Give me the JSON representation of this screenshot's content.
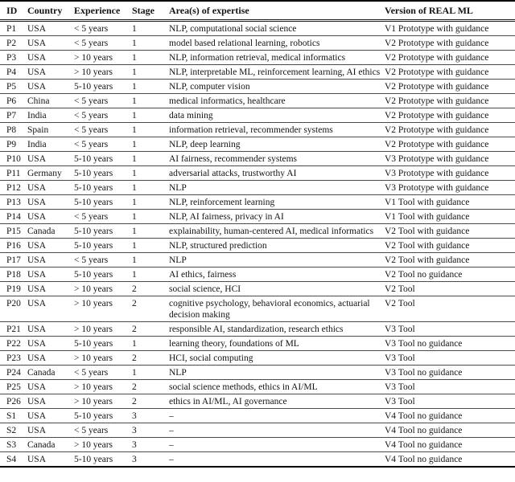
{
  "table": {
    "columns": [
      "ID",
      "Country",
      "Experience",
      "Stage",
      "Area(s) of expertise",
      "Version of REAL ML"
    ],
    "rows": [
      [
        "P1",
        "USA",
        "< 5 years",
        "1",
        "NLP, computational social science",
        "V1 Prototype with guidance"
      ],
      [
        "P2",
        "USA",
        "< 5 years",
        "1",
        "model based relational learning, robotics",
        "V2 Prototype with guidance"
      ],
      [
        "P3",
        "USA",
        "> 10 years",
        "1",
        "NLP, information retrieval, medical informatics",
        "V2 Prototype with guidance"
      ],
      [
        "P4",
        "USA",
        "> 10 years",
        "1",
        "NLP, interpretable ML, reinforcement learning, AI ethics",
        "V2 Prototype with guidance"
      ],
      [
        "P5",
        "USA",
        "5-10 years",
        "1",
        "NLP, computer vision",
        "V2 Prototype with guidance"
      ],
      [
        "P6",
        "China",
        "< 5 years",
        "1",
        "medical informatics, healthcare",
        "V2 Prototype with guidance"
      ],
      [
        "P7",
        "India",
        "< 5 years",
        "1",
        "data mining",
        "V2 Prototype with guidance"
      ],
      [
        "P8",
        "Spain",
        "< 5 years",
        "1",
        "information retrieval, recommender systems",
        "V2 Prototype with guidance"
      ],
      [
        "P9",
        "India",
        "< 5 years",
        "1",
        "NLP, deep learning",
        "V2 Prototype with guidance"
      ],
      [
        "P10",
        "USA",
        "5-10 years",
        "1",
        "AI fairness, recommender systems",
        "V3 Prototype with guidance"
      ],
      [
        "P11",
        "Germany",
        "5-10 years",
        "1",
        "adversarial attacks, trustworthy AI",
        "V3 Prototype with guidance"
      ],
      [
        "P12",
        "USA",
        "5-10 years",
        "1",
        "NLP",
        "V3 Prototype with guidance"
      ],
      [
        "P13",
        "USA",
        "5-10 years",
        "1",
        "NLP, reinforcement learning",
        "V1 Tool with guidance"
      ],
      [
        "P14",
        "USA",
        "< 5 years",
        "1",
        "NLP, AI fairness, privacy in AI",
        "V1 Tool with guidance"
      ],
      [
        "P15",
        "Canada",
        "5-10 years",
        "1",
        "explainability, human-centered AI, medical informatics",
        "V2 Tool with guidance"
      ],
      [
        "P16",
        "USA",
        "5-10 years",
        "1",
        "NLP, structured prediction",
        "V2 Tool with guidance"
      ],
      [
        "P17",
        "USA",
        "< 5 years",
        "1",
        "NLP",
        "V2 Tool with guidance"
      ],
      [
        "P18",
        "USA",
        "5-10 years",
        "1",
        "AI ethics, fairness",
        "V2 Tool no guidance"
      ],
      [
        "P19",
        "USA",
        "> 10 years",
        "2",
        "social science, HCI",
        "V2 Tool"
      ],
      [
        "P20",
        "USA",
        "> 10 years",
        "2",
        "cognitive psychology, behavioral economics, actuarial decision making",
        "V2 Tool"
      ],
      [
        "P21",
        "USA",
        "> 10 years",
        "2",
        "responsible AI, standardization, research ethics",
        "V3 Tool"
      ],
      [
        "P22",
        "USA",
        "5-10 years",
        "1",
        "learning theory, foundations of ML",
        "V3 Tool no guidance"
      ],
      [
        "P23",
        "USA",
        "> 10 years",
        "2",
        "HCI, social computing",
        "V3 Tool"
      ],
      [
        "P24",
        "Canada",
        "< 5 years",
        "1",
        "NLP",
        "V3 Tool no guidance"
      ],
      [
        "P25",
        "USA",
        "> 10 years",
        "2",
        "social science methods, ethics in AI/ML",
        "V3 Tool"
      ],
      [
        "P26",
        "USA",
        "> 10 years",
        "2",
        "ethics in AI/ML, AI governance",
        "V3 Tool"
      ],
      [
        "S1",
        "USA",
        "5-10 years",
        "3",
        "–",
        "V4 Tool no guidance"
      ],
      [
        "S2",
        "USA",
        "< 5 years",
        "3",
        "–",
        "V4 Tool no guidance"
      ],
      [
        "S3",
        "Canada",
        "> 10 years",
        "3",
        "–",
        "V4 Tool no guidance"
      ],
      [
        "S4",
        "USA",
        "5-10 years",
        "3",
        "–",
        "V4 Tool no guidance"
      ]
    ]
  }
}
